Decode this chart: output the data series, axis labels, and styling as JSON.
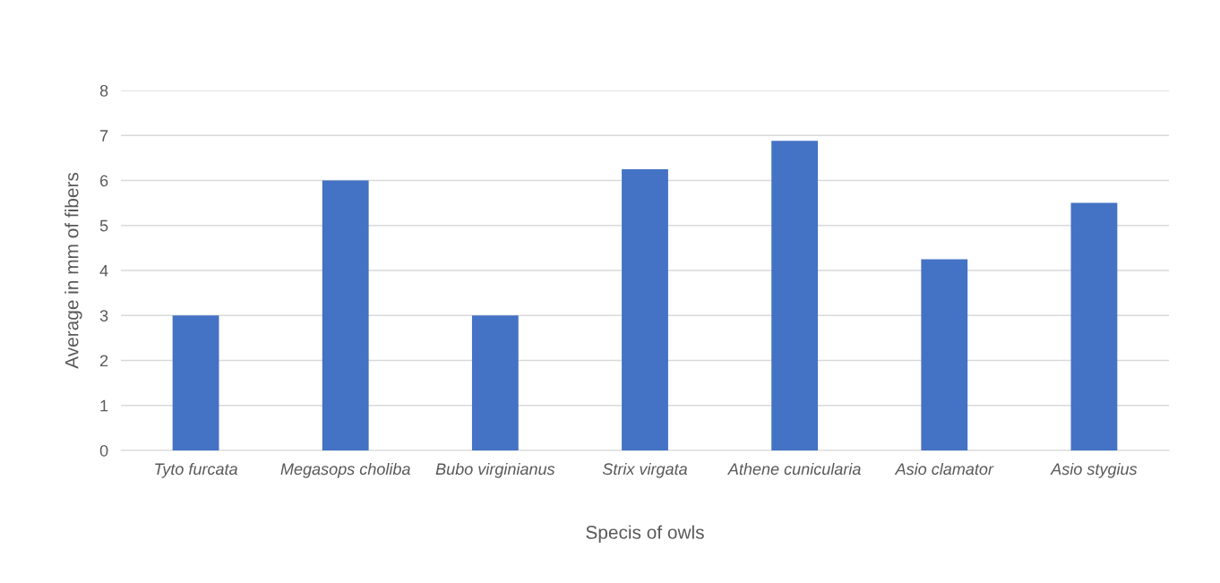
{
  "chart_data": {
    "type": "bar",
    "xlabel": "Specis of owls",
    "ylabel": "Average in mm of fibers",
    "categories": [
      "Tyto furcata",
      "Megasops choliba",
      "Bubo virginianus",
      "Strix virgata",
      "Athene cunicularia",
      "Asio clamator",
      "Asio stygius"
    ],
    "values": [
      3,
      6,
      3,
      6.25,
      6.88,
      4.25,
      5.5
    ],
    "color": "#4472c4",
    "ylim": [
      0,
      8
    ],
    "yticks": [
      0,
      1,
      2,
      3,
      4,
      5,
      6,
      7,
      8
    ],
    "grid": "y",
    "legend": false
  }
}
